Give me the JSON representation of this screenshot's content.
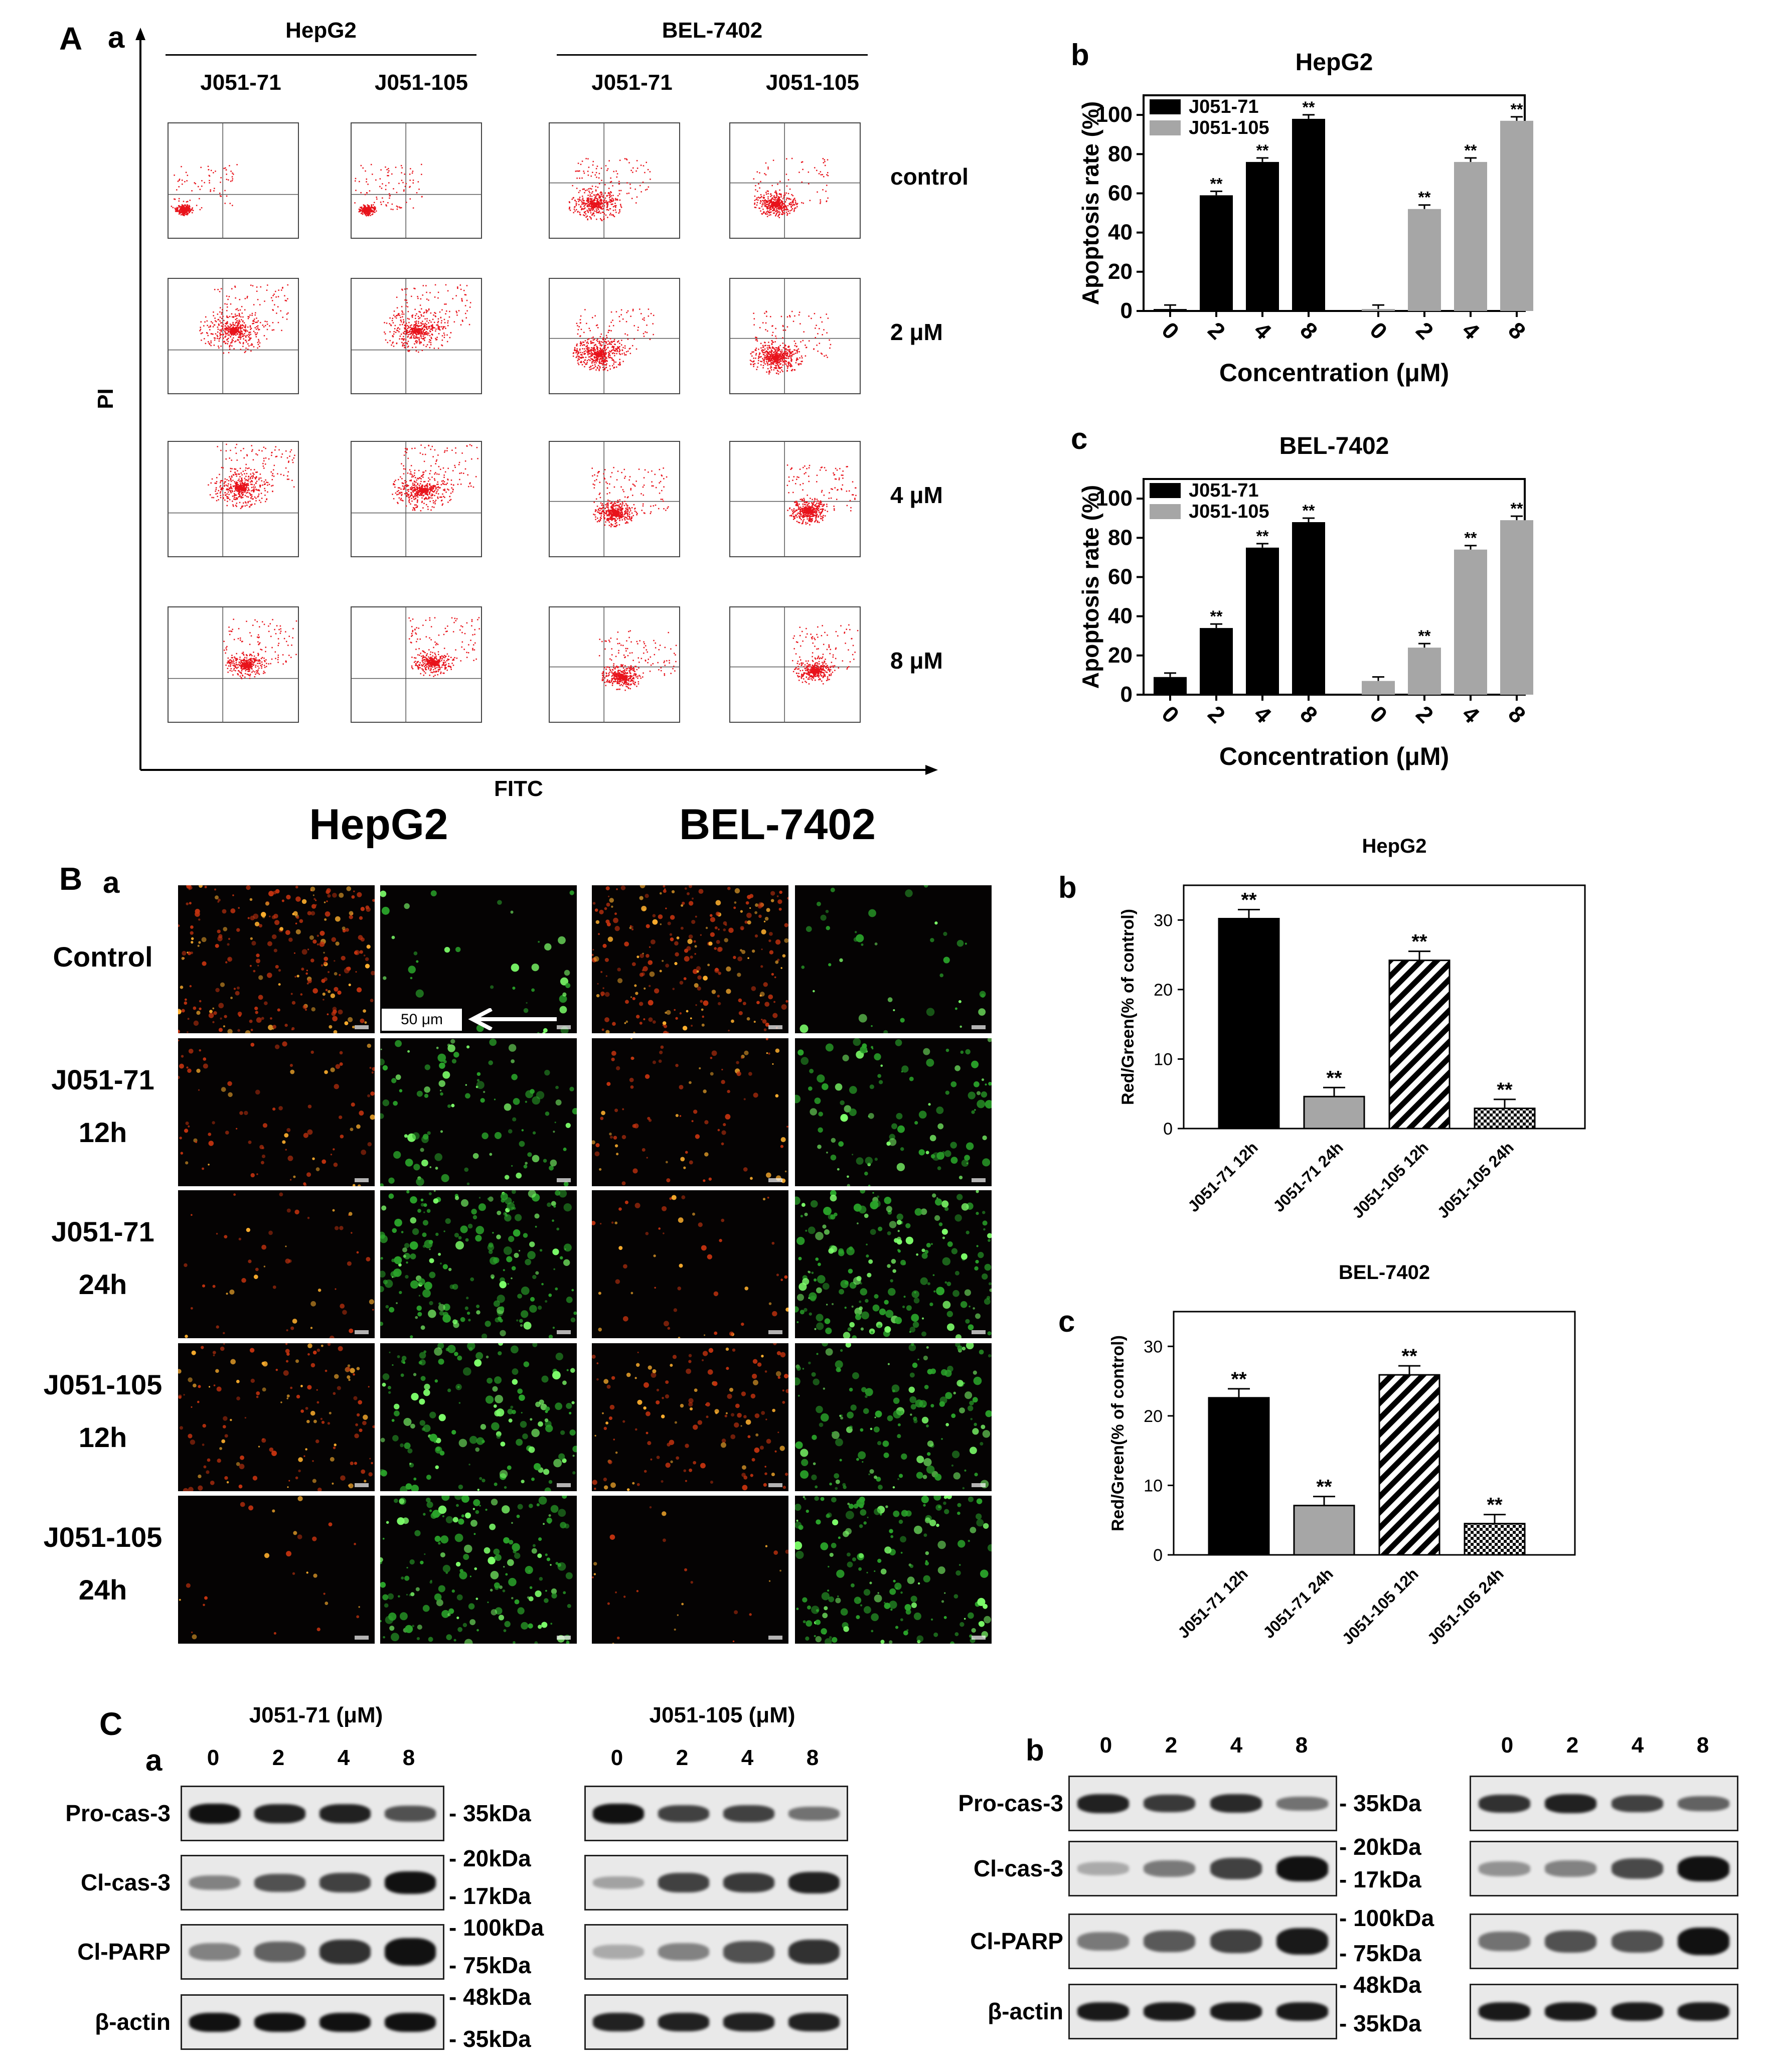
{
  "panelA": {
    "label": "A",
    "sublabel_a": "a",
    "cell_lines": [
      "HepG2",
      "BEL-7402"
    ],
    "compounds": [
      "J051-71",
      "J051-105",
      "J051-71",
      "J051-105"
    ],
    "row_labels": [
      "control",
      "2 μM",
      "4 μM",
      "8 μM"
    ],
    "y_axis_label": "PI",
    "x_axis_label": "FITC",
    "flow_colors": {
      "dots": "#e8131b",
      "frame": "#444444"
    }
  },
  "panelAb": {
    "label": "b",
    "chart_data": {
      "type": "bar",
      "title": "HepG2",
      "xlabel": "Concentration  (μM)",
      "ylabel": "Apoptosis rate  (%)",
      "ylim": [
        0,
        110
      ],
      "yticks": [
        0,
        20,
        40,
        60,
        80,
        100
      ],
      "categories": [
        "0",
        "2",
        "4",
        "8"
      ],
      "series": [
        {
          "name": "J051-71",
          "color": "#000000",
          "values": [
            1,
            59,
            76,
            98
          ],
          "sig": [
            "",
            "**",
            "**",
            "**"
          ]
        },
        {
          "name": "J051-105",
          "color": "#a6a6a6",
          "values": [
            1,
            52,
            76,
            97
          ],
          "sig": [
            "",
            "**",
            "**",
            "**"
          ]
        }
      ]
    }
  },
  "panelAc": {
    "label": "c",
    "chart_data": {
      "type": "bar",
      "title": "BEL-7402",
      "xlabel": "Concentration  (μM)",
      "ylabel": "Apoptosis rate  (%)",
      "ylim": [
        0,
        110
      ],
      "yticks": [
        0,
        20,
        40,
        60,
        80,
        100
      ],
      "categories": [
        "0",
        "2",
        "4",
        "8"
      ],
      "series": [
        {
          "name": "J051-71",
          "color": "#000000",
          "values": [
            9,
            34,
            75,
            88
          ],
          "sig": [
            "",
            "**",
            "**",
            "**"
          ]
        },
        {
          "name": "J051-105",
          "color": "#a6a6a6",
          "values": [
            7,
            24,
            74,
            89
          ],
          "sig": [
            "",
            "**",
            "**",
            "**"
          ]
        }
      ]
    }
  },
  "panelB": {
    "label": "B",
    "sublabel_a": "a",
    "cell_lines": [
      "HepG2",
      "BEL-7402"
    ],
    "rows": [
      {
        "line1": "Control",
        "line2": ""
      },
      {
        "line1": "J051-71",
        "line2": "12h"
      },
      {
        "line1": "J051-71",
        "line2": "24h"
      },
      {
        "line1": "J051-105",
        "line2": "12h"
      },
      {
        "line1": "J051-105",
        "line2": "24h"
      }
    ],
    "scale_bar": "50 μm"
  },
  "panelBb": {
    "label": "b",
    "chart_data": {
      "type": "bar",
      "title": "HepG2",
      "ylabel": "Red/Green(% of control)",
      "ylim": [
        0,
        35
      ],
      "yticks": [
        0,
        10,
        20,
        30
      ],
      "categories": [
        "J051-71 12h",
        "J051-71 24h",
        "J051-105 12h",
        "J051-105 24h"
      ],
      "values": [
        30.2,
        4.6,
        24.2,
        2.9
      ],
      "sig": [
        "**",
        "**",
        "**",
        "**"
      ],
      "fills": [
        "solid-black",
        "solid-gray",
        "hatched",
        "checkered"
      ]
    }
  },
  "panelBc": {
    "label": "c",
    "chart_data": {
      "type": "bar",
      "title": "BEL-7402",
      "ylabel": "Red/Green(% of control)",
      "ylim": [
        0,
        35
      ],
      "yticks": [
        0,
        10,
        20,
        30
      ],
      "categories": [
        "J051-71 12h",
        "J051-71 24h",
        "J051-105 12h",
        "J051-105 24h"
      ],
      "values": [
        22.6,
        7.1,
        25.9,
        4.5
      ],
      "sig": [
        "**",
        "**",
        "**",
        "**"
      ],
      "fills": [
        "solid-black",
        "solid-gray",
        "hatched",
        "checkered"
      ]
    }
  },
  "panelC": {
    "label": "C",
    "sublabel_a": "a",
    "sublabel_b": "b",
    "compound_headers": [
      "J051-71 (μM)",
      "J051-105 (μM)"
    ],
    "lanes": [
      "0",
      "2",
      "4",
      "8"
    ],
    "proteins": [
      "Pro-cas-3",
      "Cl-cas-3",
      "Cl-PARP",
      "β-actin"
    ],
    "markers": {
      "pro": [
        "35kDa"
      ],
      "cl": [
        "20kDa",
        "17kDa"
      ],
      "parp": [
        "100kDa",
        "75kDa"
      ],
      "actin": [
        "48kDa",
        "35kDa"
      ]
    },
    "band_intensity_a": {
      "pro_71": [
        1,
        0.9,
        0.9,
        0.6
      ],
      "pro_105": [
        1,
        0.7,
        0.7,
        0.4
      ],
      "cl_71": [
        0.3,
        0.6,
        0.7,
        1
      ],
      "cl_105": [
        0.1,
        0.7,
        0.75,
        0.9
      ],
      "parp_71": [
        0.3,
        0.5,
        0.8,
        1
      ],
      "parp_105": [
        0.05,
        0.3,
        0.6,
        0.8
      ],
      "actin_71": [
        1,
        1,
        1,
        1
      ],
      "actin_105": [
        0.9,
        0.9,
        0.9,
        0.9
      ]
    },
    "band_intensity_b": {
      "pro_1": [
        0.9,
        0.75,
        0.85,
        0.4
      ],
      "pro_2": [
        0.8,
        0.9,
        0.7,
        0.5
      ],
      "cl_1": [
        0.05,
        0.35,
        0.7,
        1
      ],
      "cl_2": [
        0.2,
        0.3,
        0.65,
        1
      ],
      "parp_1": [
        0.35,
        0.55,
        0.7,
        0.95
      ],
      "parp_2": [
        0.4,
        0.6,
        0.6,
        1
      ],
      "actin_1": [
        0.95,
        0.95,
        0.95,
        0.95
      ],
      "actin_2": [
        0.95,
        0.95,
        0.95,
        0.95
      ]
    }
  }
}
